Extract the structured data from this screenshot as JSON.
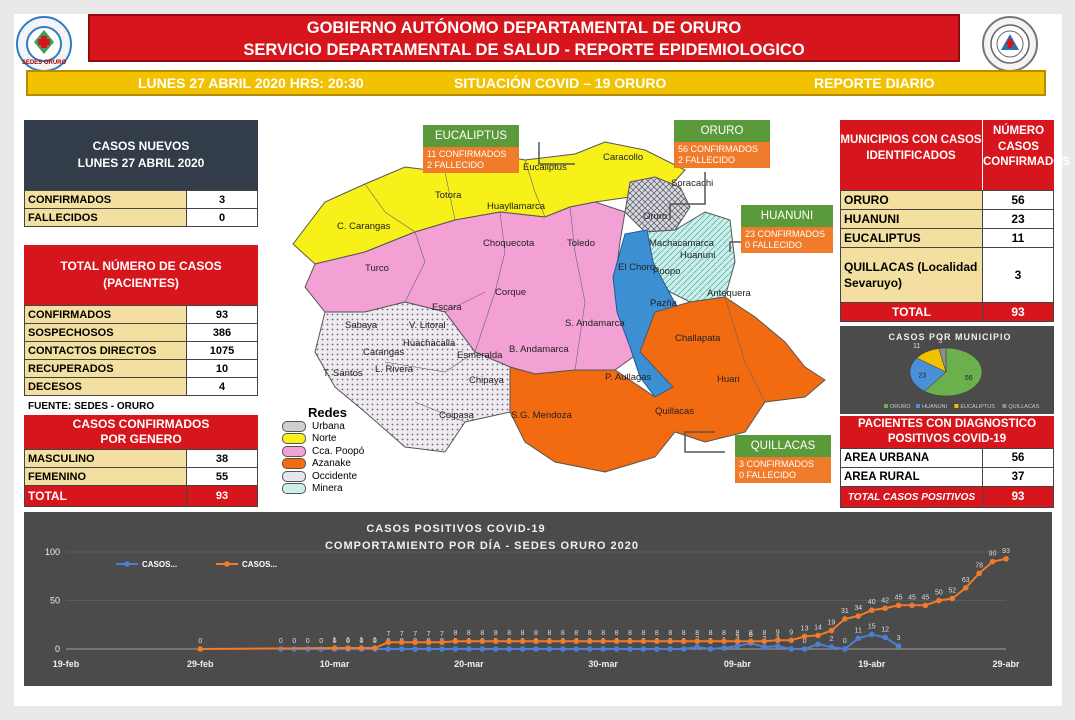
{
  "header": {
    "title_line1": "GOBIERNO AUTÓNOMO DEPARTAMENTAL DE ORURO",
    "title_line2": "SERVICIO DEPARTAMENTAL DE SALUD - REPORTE EPIDEMIOLOGICO",
    "logo_left_text": "SEDES ORURO",
    "date": "LUNES 27 ABRIL 2020 HRS: 20:30",
    "situation": "SITUACIÓN COVID – 19 ORURO",
    "report": "REPORTE DIARIO"
  },
  "casos_nuevos": {
    "title_line1": "CASOS NUEVOS",
    "title_line2": "LUNES 27 ABRIL 2020",
    "rows": [
      {
        "label": "CONFIRMADOS",
        "value": "3"
      },
      {
        "label": "FALLECIDOS",
        "value": "0"
      }
    ]
  },
  "total_casos": {
    "title_line1": "TOTAL NÚMERO DE CASOS",
    "title_line2": "(PACIENTES)",
    "rows": [
      {
        "label": "CONFIRMADOS",
        "value": "93"
      },
      {
        "label": "SOSPECHOSOS",
        "value": "386"
      },
      {
        "label": "CONTACTOS DIRECTOS",
        "value": "1075"
      },
      {
        "label": "RECUPERADOS",
        "value": "10"
      },
      {
        "label": "DECESOS",
        "value": "4"
      }
    ],
    "source": "FUENTE: SEDES - ORURO"
  },
  "genero": {
    "title_line1": "CASOS CONFIRMADOS",
    "title_line2": "POR GENERO",
    "rows": [
      {
        "label": "MASCULINO",
        "value": "38"
      },
      {
        "label": "FEMENINO",
        "value": "55"
      }
    ],
    "total_label": "TOTAL",
    "total_value": "93"
  },
  "map": {
    "callouts": [
      {
        "title": "EUCALIPTUS",
        "line1": "11 CONFIRMADOS",
        "line2": "2 FALLECIDO"
      },
      {
        "title": "ORURO",
        "line1": "56 CONFIRMADOS",
        "line2": "2 FALLECIDO"
      },
      {
        "title": "HUANUNI",
        "line1": "23 CONFIRMADOS",
        "line2": "0 FALLECIDO"
      },
      {
        "title": "QUILLACAS",
        "line1": "3 CONFIRMADOS",
        "line2": "0 FALLECIDO"
      }
    ],
    "municipalities": [
      "Eucaliptus",
      "Caracollo",
      "Soracachi",
      "Oruro",
      "Totora",
      "Huayllamarca",
      "C. Carangas",
      "Choquecota",
      "Toledo",
      "Machacamarca",
      "Huanuni",
      "Poopo",
      "Antequera",
      "Turco",
      "Corque",
      "El Choro",
      "Pazña",
      "Escara",
      "Sabaya",
      "V. Litoral",
      "Huachacalla",
      "Carangas",
      "Esmeralda",
      "B. Andamarca",
      "S. Andamarca",
      "Challapata",
      "T. Santos",
      "L. Rivera",
      "Chipaya",
      "P. Aullagas",
      "Huari",
      "Coipasa",
      "S.G. Mendoza",
      "Quillacas"
    ],
    "legend_title": "Redes",
    "legend": [
      {
        "name": "Urbana",
        "color": "#cfcfcf"
      },
      {
        "name": "Norte",
        "color": "#f7f019"
      },
      {
        "name": "Cca. Poopó",
        "color": "#f3a0d5"
      },
      {
        "name": "Azanake",
        "color": "#f26b10"
      },
      {
        "name": "Occidente",
        "color": "#e8e4ee"
      },
      {
        "name": "Minera",
        "color": "#cdeeea"
      }
    ]
  },
  "municipios": {
    "col1": "MUNICIPIOS CON CASOS IDENTIFICADOS",
    "col2": "NÚMERO CASOS CONFIRMADOS",
    "rows": [
      {
        "label": "ORURO",
        "value": "56"
      },
      {
        "label": "HUANUNI",
        "value": "23"
      },
      {
        "label": "EUCALIPTUS",
        "value": "11"
      },
      {
        "label": "QUILLACAS (Localidad Sevaruyo)",
        "value": "3"
      }
    ],
    "total_label": "TOTAL",
    "total_value": "93"
  },
  "diagnostico": {
    "title_line1": "PACIENTES CON DIAGNOSTICO",
    "title_line2": "POSITIVOS COVID-19",
    "rows": [
      {
        "label": "AREA URBANA",
        "value": "56"
      },
      {
        "label": "AREA RURAL",
        "value": "37"
      }
    ],
    "total_label": "TOTAL CASOS POSITIVOS",
    "total_value": "93"
  },
  "chart_data": [
    {
      "type": "pie",
      "title": "CASOS POR MUNICIPIO",
      "categories": [
        "ORURO",
        "HUANUNI",
        "EUCALIPTUS",
        "QUILLACAS"
      ],
      "values": [
        56,
        23,
        11,
        3
      ],
      "colors": [
        "#6ab04c",
        "#4a90d9",
        "#f2c200",
        "#8e8e8e"
      ]
    },
    {
      "type": "line",
      "title": "CASOS POSITIVOS  COVID-19",
      "subtitle": "COMPORTAMIENTO POR DÍA - SEDES ORURO 2020",
      "ylim": [
        0,
        100
      ],
      "yticks": [
        0,
        50,
        100
      ],
      "xlim": [
        "2020-02-19",
        "2020-04-29"
      ],
      "xtick_labels": [
        "19-feb",
        "29-feb",
        "10-mar",
        "20-mar",
        "30-mar",
        "09-abr",
        "19-abr",
        "29-abr"
      ],
      "legend": "top-left",
      "series": [
        {
          "name": "CASOS...",
          "color": "#4a7fd4",
          "x_start": "2020-03-06",
          "values": [
            0,
            0,
            0,
            0,
            0,
            0,
            0,
            0,
            0,
            0,
            0,
            0,
            0,
            0,
            0,
            0,
            0,
            0,
            0,
            0,
            0,
            0,
            0,
            0,
            0,
            0,
            0,
            0,
            0,
            0,
            0,
            2,
            0,
            1,
            3,
            6,
            2,
            3,
            0,
            0,
            5,
            2,
            0,
            11,
            15,
            12,
            3
          ]
        },
        {
          "name": "CASOS...",
          "color": "#ef7b2b",
          "points": [
            [
              "2020-02-29",
              0
            ],
            [
              "2020-03-10",
              1
            ],
            [
              "2020-03-11",
              1
            ],
            [
              "2020-03-12",
              1
            ],
            [
              "2020-03-13",
              1
            ]
          ],
          "x_start": "2020-03-14",
          "values": [
            7,
            7,
            7,
            7,
            7,
            8,
            8,
            8,
            8,
            8,
            8,
            8,
            8,
            8,
            8,
            8,
            8,
            8,
            8,
            8,
            8,
            8,
            8,
            8,
            8,
            8,
            8,
            8,
            8,
            9,
            9,
            13,
            14,
            19,
            31,
            34,
            40,
            42,
            45,
            45,
            45,
            50,
            52,
            63,
            78,
            90,
            93
          ]
        }
      ]
    }
  ]
}
